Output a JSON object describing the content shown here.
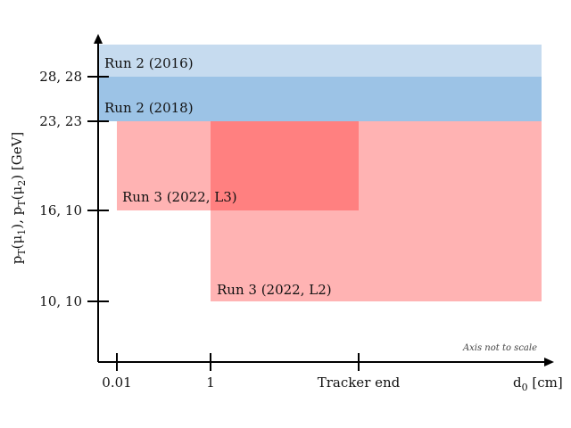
{
  "chart_data": {
    "type": "area",
    "note": "Axis not to scale",
    "xlabel": {
      "main": "d",
      "sub": "0",
      "unit": " [cm]"
    },
    "ylabel": {
      "parts": [
        {
          "t": "p"
        },
        {
          "t": "T",
          "sub": true
        },
        {
          "t": "(μ"
        },
        {
          "t": "1",
          "sub": true
        },
        {
          "t": "), p"
        },
        {
          "t": "T",
          "sub": true
        },
        {
          "t": "(μ"
        },
        {
          "t": "2",
          "sub": true
        },
        {
          "t": ") [GeV]"
        }
      ]
    },
    "x_ticks": [
      "0.01",
      "1",
      "Tracker end"
    ],
    "y_ticks": [
      "10, 10",
      "16, 10",
      "23, 23",
      "28, 28"
    ],
    "regions": [
      {
        "label": "Run 2 (2016)",
        "x_from": "0",
        "x_to": "∞",
        "y_from": "28, 28",
        "y_to": "open",
        "color": "#c6dbef"
      },
      {
        "label": "Run 2 (2018)",
        "x_from": "0",
        "x_to": "∞",
        "y_from": "23, 23",
        "y_to": "28, 28",
        "color": "#9cc3e6"
      },
      {
        "label": "Run 3 (2022, L2)",
        "x_from": "1",
        "x_to": "∞",
        "y_from": "10, 10",
        "y_to": "23, 23",
        "color": "#ffb3b3"
      },
      {
        "label": "Run 3 (2022, L3)",
        "x_from": "0.01",
        "x_to": "Tracker end",
        "y_from": "16, 10",
        "y_to": "23, 23",
        "color": "#ffb3b3"
      }
    ],
    "overlap": {
      "x_from": "1",
      "x_to": "Tracker end",
      "y_from": "16, 10",
      "y_to": "23, 23",
      "color": "#ff8080"
    },
    "colors": {
      "axis": "#000000",
      "text": "#111111"
    }
  }
}
